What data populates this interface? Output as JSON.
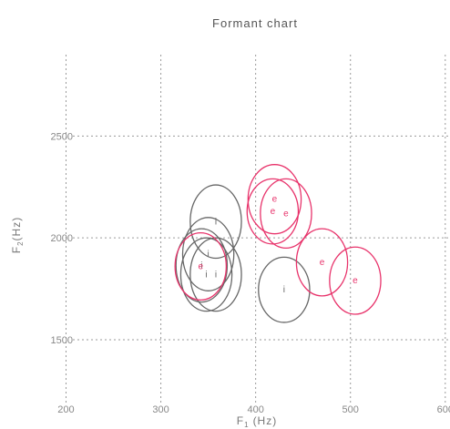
{
  "chart_data": {
    "type": "scatter",
    "title": "Formant chart",
    "xlabel_main": "F",
    "xlabel_sub": "1",
    "xlabel_unit": "(Hz)",
    "ylabel_main": "F",
    "ylabel_sub": "2",
    "ylabel_unit": "(Hz)",
    "xlim": [
      188,
      605
    ],
    "ylim": [
      1200,
      2900
    ],
    "x_ticks": [
      200,
      300,
      400,
      500,
      600
    ],
    "y_ticks": [
      1500,
      2000,
      2500
    ],
    "x_tick_labels": [
      "200",
      "300",
      "400",
      "500",
      "600"
    ],
    "y_tick_labels": [
      "1500",
      "2000",
      "2500"
    ],
    "grid": true,
    "series": [
      {
        "label": "i",
        "color": "#666666",
        "points": [
          {
            "x": 358,
            "y": 2080,
            "rx": 27,
            "ry": 180
          },
          {
            "x": 350,
            "y": 1920,
            "rx": 27,
            "ry": 180
          },
          {
            "x": 343,
            "y": 1865,
            "rx": 27,
            "ry": 180
          },
          {
            "x": 348,
            "y": 1820,
            "rx": 27,
            "ry": 180
          },
          {
            "x": 358,
            "y": 1820,
            "rx": 27,
            "ry": 180
          },
          {
            "x": 430,
            "y": 1745,
            "rx": 27,
            "ry": 160
          }
        ]
      },
      {
        "label": "e",
        "color": "#e8336b",
        "points": [
          {
            "x": 420,
            "y": 2190,
            "rx": 28,
            "ry": 170
          },
          {
            "x": 418,
            "y": 2130,
            "rx": 27,
            "ry": 160
          },
          {
            "x": 432,
            "y": 2120,
            "rx": 27,
            "ry": 170
          },
          {
            "x": 470,
            "y": 1880,
            "rx": 27,
            "ry": 165
          },
          {
            "x": 505,
            "y": 1790,
            "rx": 27,
            "ry": 165
          },
          {
            "x": 342,
            "y": 1860,
            "rx": 27,
            "ry": 165
          }
        ]
      }
    ]
  }
}
